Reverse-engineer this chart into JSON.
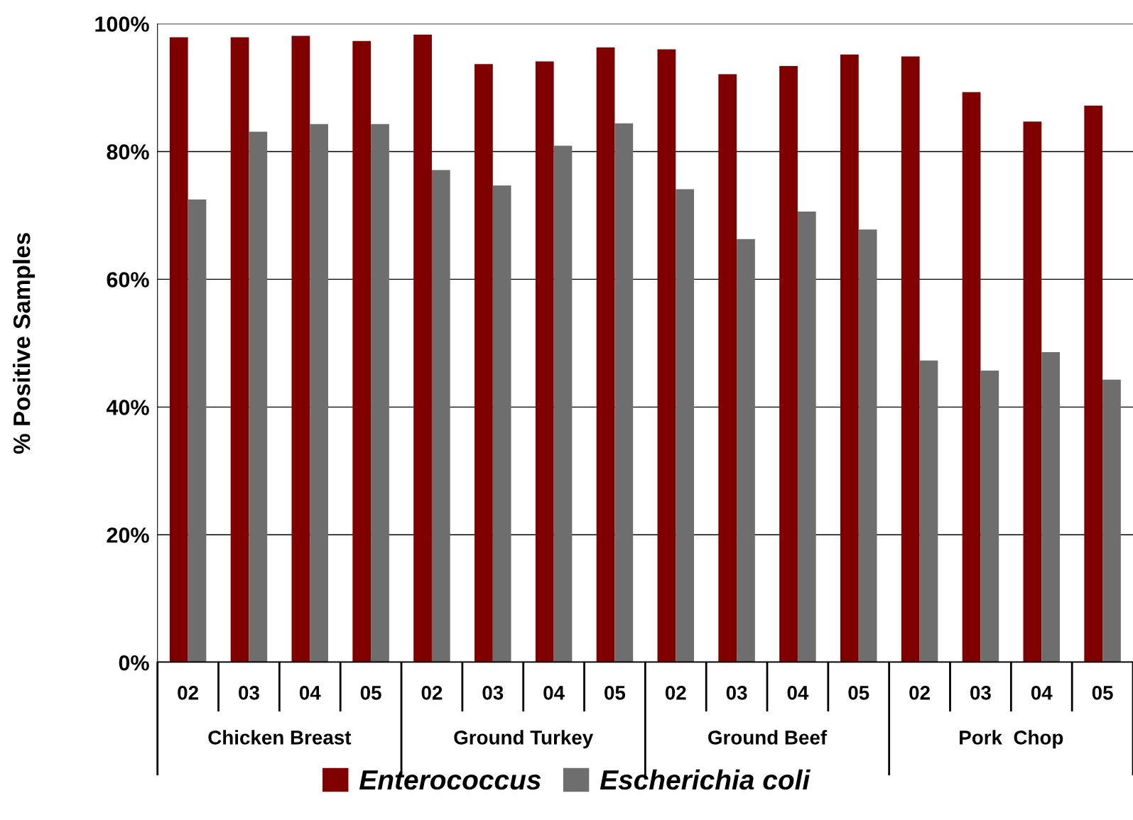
{
  "chart_data": {
    "type": "bar",
    "ylabel": "% Positive Samples",
    "categories": [
      "02",
      "03",
      "04",
      "05",
      "02",
      "03",
      "04",
      "05",
      "02",
      "03",
      "04",
      "05",
      "02",
      "03",
      "04",
      "05"
    ],
    "annotations": [
      "Chicken Breast",
      "Ground Turkey",
      "Ground Beef",
      "Pork  Chop"
    ],
    "series": [
      {
        "name": "Enterococcus",
        "color": "#800000",
        "values": [
          97.9,
          97.9,
          98.1,
          97.3,
          98.3,
          93.7,
          94.1,
          96.3,
          96.0,
          92.1,
          93.4,
          95.2,
          94.9,
          89.3,
          84.7,
          87.2
        ]
      },
      {
        "name": "Escherichia coli",
        "color": "#6e6e6e",
        "values": [
          72.5,
          83.1,
          84.3,
          84.3,
          77.1,
          74.7,
          80.9,
          84.4,
          74.1,
          66.3,
          70.6,
          67.8,
          47.3,
          45.7,
          48.6,
          44.3
        ]
      }
    ],
    "ylim": [
      0,
      100
    ],
    "yticks": [
      {
        "value": 0,
        "label": "0%"
      },
      {
        "value": 20,
        "label": "20%"
      },
      {
        "value": 40,
        "label": "40%"
      },
      {
        "value": 60,
        "label": "60%"
      },
      {
        "value": 80,
        "label": "80%"
      },
      {
        "value": 100,
        "label": "100%"
      }
    ],
    "grid": "y",
    "legend": "bottom"
  }
}
